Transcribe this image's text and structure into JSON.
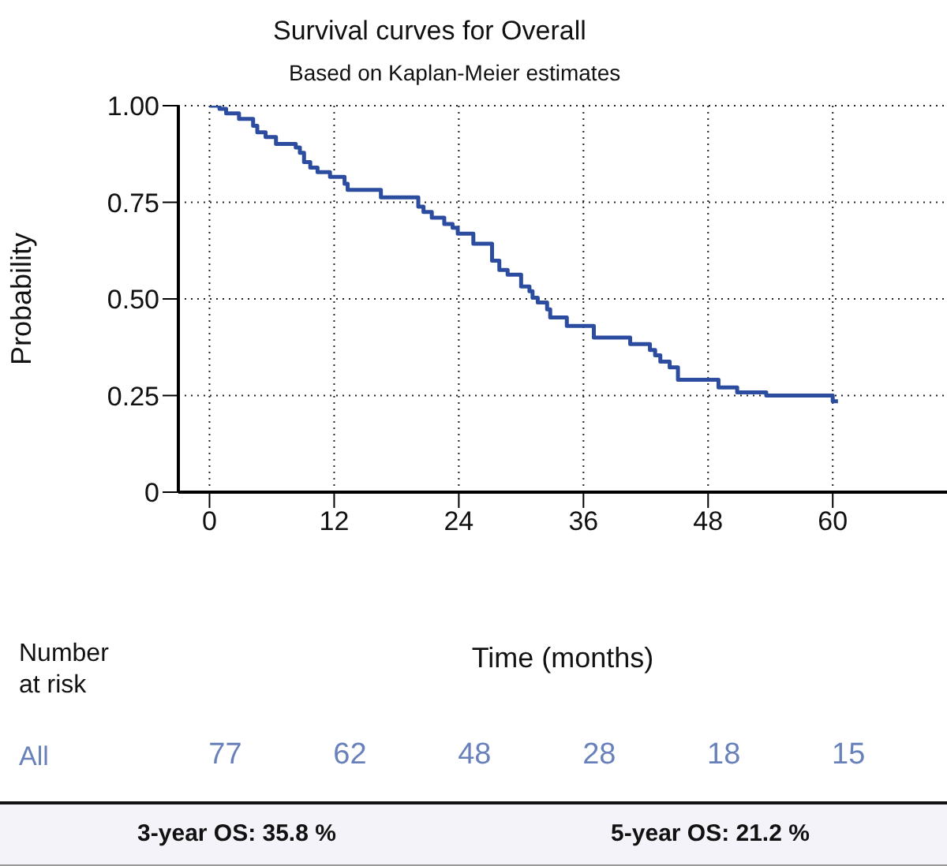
{
  "chart_data": {
    "type": "step",
    "title": "Survival curves for Overall",
    "subtitle": "Based on Kaplan-Meier estimates",
    "xlabel": "Time (months)",
    "ylabel": "Probability",
    "xlim": [
      -3,
      71
    ],
    "xticks": [
      0,
      12,
      24,
      36,
      48,
      60
    ],
    "ylim": [
      0,
      1
    ],
    "yticks": [
      {
        "value": 0,
        "label": "0"
      },
      0.25,
      {
        "value": 0.5,
        "label": "0.50"
      },
      0.75,
      {
        "value": 1,
        "label": "1.00"
      }
    ],
    "grid": true,
    "series": [
      {
        "name": "All",
        "color": "#2b4c9f",
        "x": [
          0,
          0.96,
          1.6,
          2.84,
          4.2,
          4.6,
          5.4,
          6.4,
          8.3,
          8.7,
          9.1,
          9.7,
          10.4,
          11.6,
          13.0,
          13.3,
          16.5,
          20.1,
          20.6,
          21.4,
          22.6,
          23.4,
          23.9,
          25.4,
          27.2,
          27.9,
          28.7,
          30.0,
          30.8,
          31.1,
          31.6,
          32.5,
          32.8,
          34.4,
          37.0,
          40.5,
          42.4,
          42.9,
          43.4,
          44.3,
          45.1,
          49.0,
          50.8,
          53.6,
          60.0,
          60.5
        ],
        "values": [
          1.0,
          0.992,
          0.98,
          0.966,
          0.948,
          0.931,
          0.919,
          0.901,
          0.892,
          0.878,
          0.854,
          0.84,
          0.828,
          0.816,
          0.798,
          0.782,
          0.763,
          0.739,
          0.725,
          0.71,
          0.694,
          0.684,
          0.669,
          0.643,
          0.599,
          0.575,
          0.563,
          0.532,
          0.52,
          0.503,
          0.491,
          0.473,
          0.452,
          0.43,
          0.4,
          0.383,
          0.368,
          0.354,
          0.338,
          0.323,
          0.291,
          0.271,
          0.258,
          0.25,
          0.235,
          0.235
        ]
      }
    ],
    "annotations": [
      "Number at risk",
      "3-year OS: 35.8 %",
      "5-year OS: 21.2 %",
      "77",
      "62",
      "48",
      "28",
      "18",
      "15"
    ]
  }
}
